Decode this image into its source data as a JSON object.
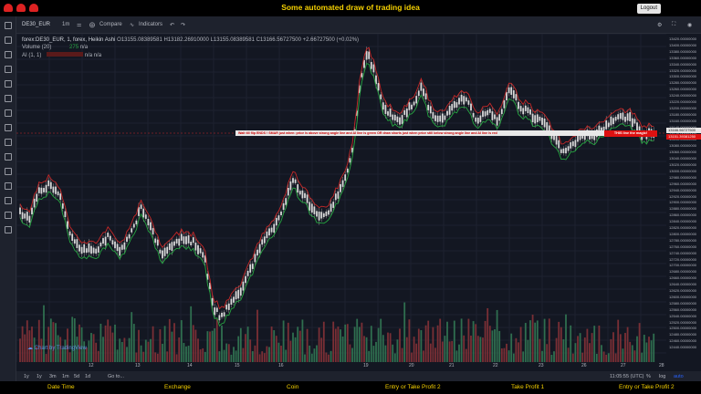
{
  "topbar": {
    "title": "Some automated draw of trading idea",
    "logout_label": "Logout"
  },
  "toolbar": {
    "symbol": "DE30_EUR",
    "interval": "1m",
    "compare_label": "Compare",
    "indicators_label": "Indicators"
  },
  "legend": {
    "main": "forex:DE30_EUR, 1, forex, Heikin Ashi",
    "open": "O13155.08389581",
    "high": "H13182.26910000",
    "low": "L13155.08389581",
    "close": "C13166.56727500",
    "change": "+2.66727500 (+0.02%)",
    "volume": "Volume (20)",
    "volume_val": "275",
    "volume_na": "n/a",
    "ai": "AI (1, 1)",
    "ai_na1": "n/a",
    "ai_na2": "n/a"
  },
  "banner": {
    "text": "Wait till flip ENDS !   SMAR just when:  price is above strong angle line and AI line is green        OR        draw shorts just when price still below strong angle line and AI line is red",
    "button": "THIS line the magic!"
  },
  "price_axis": {
    "labels": [
      "13420.00000000",
      "13400.00000000",
      "13380.00000000",
      "13360.00000000",
      "13340.00000000",
      "13320.00000000",
      "13300.00000000",
      "13280.00000000",
      "13260.00000000",
      "13240.00000000",
      "13220.00000000",
      "13200.00000000",
      "13180.00000000",
      "13160.00000000",
      "13140.00000000",
      "13120.00000000",
      "13100.00000000",
      "13080.00000000",
      "13060.00000000",
      "13040.00000000",
      "13020.00000000",
      "13000.00000000",
      "12980.00000000",
      "12960.00000000",
      "12940.00000000",
      "12920.00000000",
      "12900.00000000",
      "12880.00000000",
      "12860.00000000",
      "12840.00000000",
      "12820.00000000",
      "12800.00000000",
      "12780.00000000",
      "12760.00000000",
      "12740.00000000",
      "12720.00000000",
      "12700.00000000",
      "12680.00000000",
      "12660.00000000",
      "12640.00000000",
      "12620.00000000",
      "12600.00000000",
      "12580.00000000",
      "12560.00000000",
      "12540.00000000",
      "12520.00000000",
      "12500.00000000",
      "12480.00000000",
      "12460.00000000",
      "12440.00000000"
    ],
    "price_tag": "13166.56727500",
    "red_tag": "13151.39381250",
    "colors": {
      "up": "#d8d8d8",
      "down": "#d8d8d8",
      "ma_green": "#26a641",
      "ma_red": "#c62828",
      "vol_up": "#2f6e4f",
      "vol_down": "#7a2f35",
      "accent": "#f5d000"
    }
  },
  "time_axis": {
    "labels": [
      "12",
      "13",
      "14",
      "15",
      "16",
      "19",
      "20",
      "21",
      "22",
      "23",
      "26",
      "27",
      "28"
    ]
  },
  "watermark": "Chart by TradingView",
  "bottom": {
    "ranges": [
      "1y",
      "1y",
      "3m",
      "1m",
      "5d",
      "1d"
    ],
    "goto": "Go to...",
    "time": "11:05:55 (UTC)",
    "percent": "%",
    "log": "log",
    "auto": "auto"
  },
  "footer": [
    "Date Time",
    "Exchange",
    "Coin",
    "Entry or Take Profit 2",
    "Take Profit 1",
    "Entry or Take Profit 2"
  ]
}
